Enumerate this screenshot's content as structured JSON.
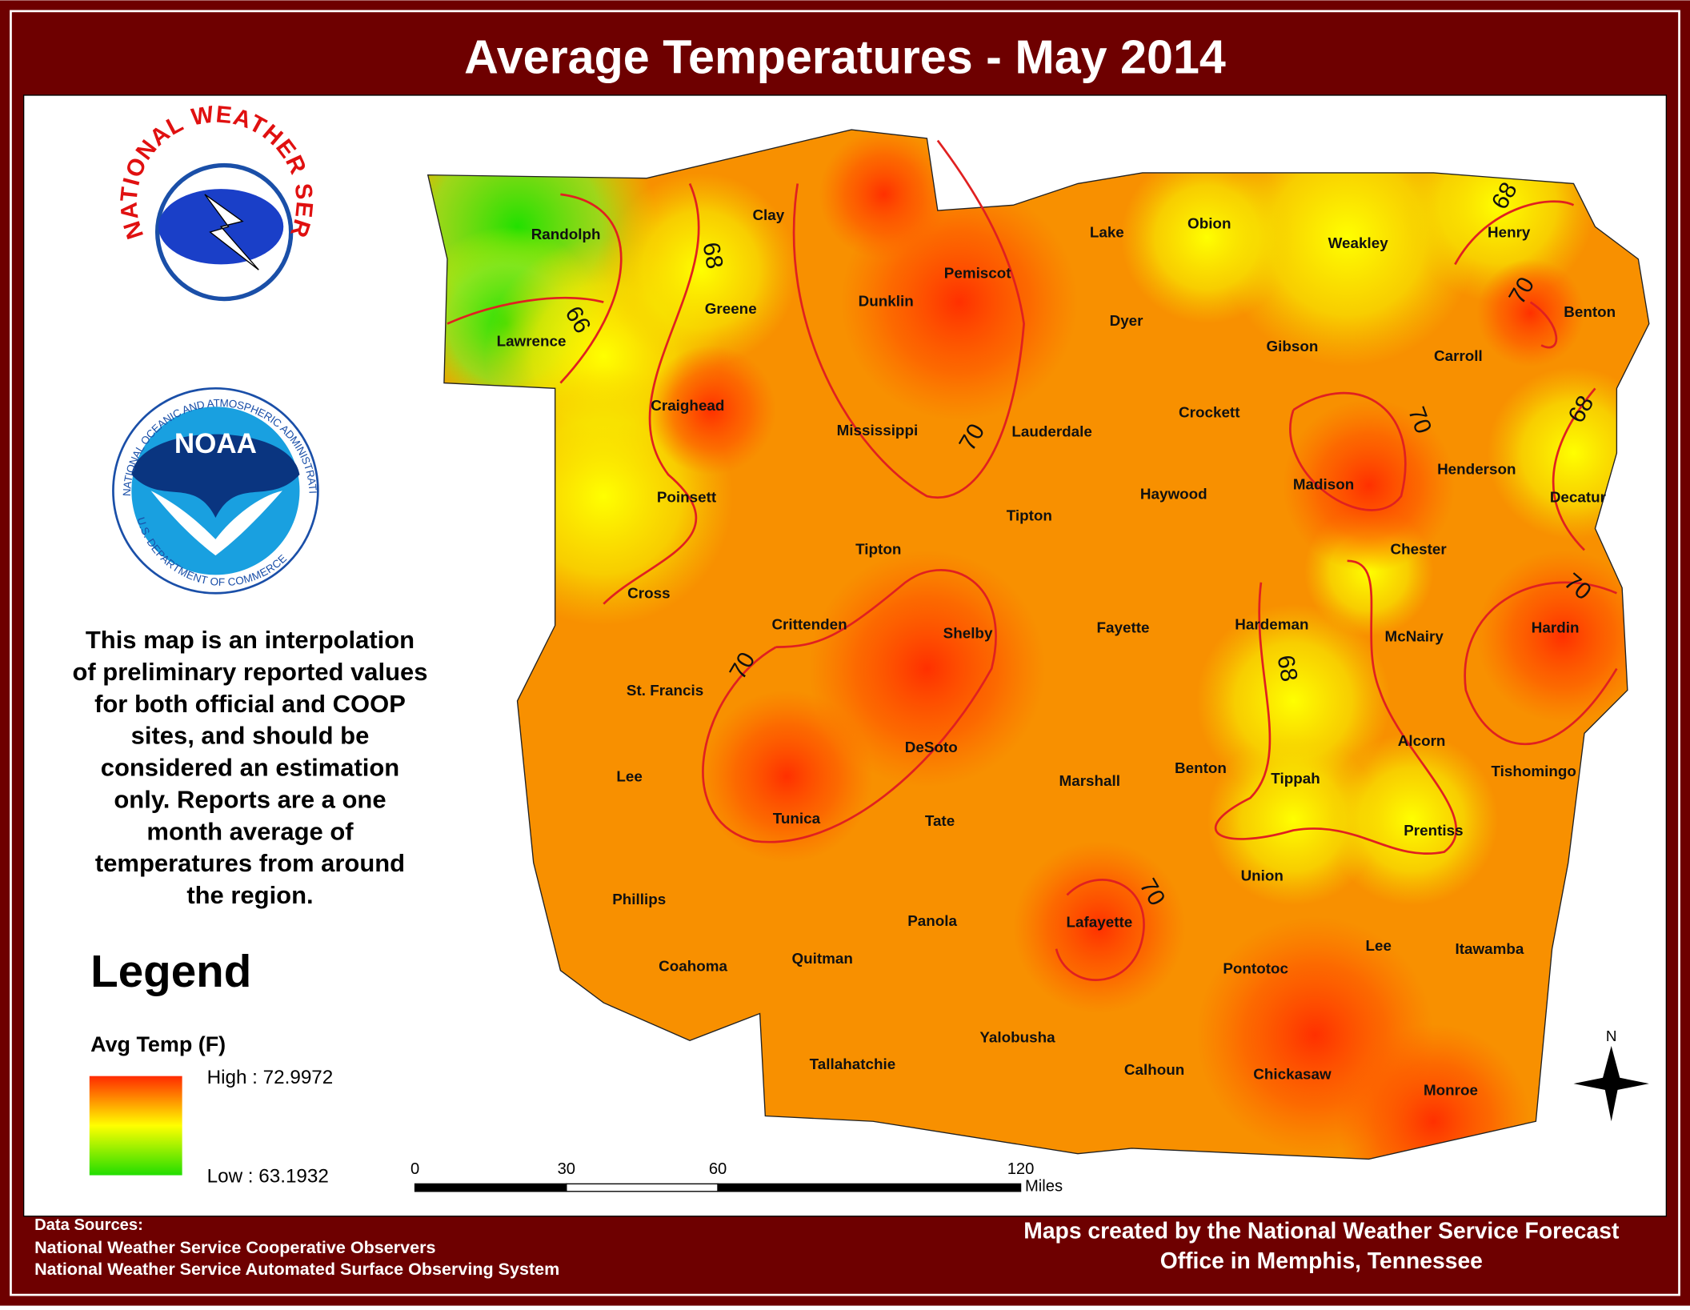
{
  "title": "Average Temperatures - May 2014",
  "logos": {
    "nws": "NATIONAL WEATHER SERVICE",
    "noaa": "NOAA",
    "noaa_ring_top": "NATIONAL OCEANIC AND ATMOSPHERIC ADMINISTRATION",
    "noaa_ring_bottom": "U.S. DEPARTMENT OF COMMERCE"
  },
  "description": [
    "This map is an interpolation",
    "of preliminary reported values",
    "for both official and COOP",
    "sites, and should be",
    "considered an estimation",
    "only. Reports are a one",
    "month average of",
    "temperatures from around",
    "the region."
  ],
  "legend": {
    "title": "Legend",
    "layer": "Avg Temp (F)",
    "high": "High : 72.9972",
    "low": "Low : 63.1932"
  },
  "counties": [
    "Randolph",
    "Clay",
    "Lawrence",
    "Greene",
    "Dunklin",
    "Pemiscot",
    "Lake",
    "Obion",
    "Weakley",
    "Henry",
    "Dyer",
    "Gibson",
    "Carroll",
    "Benton",
    "Craighead",
    "Mississippi",
    "Lauderdale",
    "Crockett",
    "Madison",
    "Henderson",
    "Decatur",
    "Poinsett",
    "Tipton",
    "Tipton",
    "Haywood",
    "Chester",
    "Cross",
    "Crittenden",
    "Shelby",
    "Fayette",
    "Hardeman",
    "McNairy",
    "Hardin",
    "St. Francis",
    "Lee",
    "DeSoto",
    "Marshall",
    "Benton",
    "Tippah",
    "Alcorn",
    "Tishomingo",
    "Tunica",
    "Tate",
    "Prentiss",
    "Union",
    "Phillips",
    "Panola",
    "Lafayette",
    "Lee",
    "Itawamba",
    "Pontotoc",
    "Coahoma",
    "Quitman",
    "Yalobusha",
    "Tallahatchie",
    "Calhoun",
    "Chickasaw",
    "Monroe"
  ],
  "contour_labels": [
    66,
    68,
    68,
    70,
    70,
    70,
    68,
    70,
    70,
    68,
    70
  ],
  "scale_bar": {
    "ticks": [
      0,
      30,
      60,
      120
    ],
    "unit": "Miles"
  },
  "north": "N",
  "footer": {
    "sources_title": "Data Sources:",
    "sources": [
      "National Weather Service Cooperative Observers",
      "National Weather Service Automated Surface Observing System"
    ],
    "credit": [
      "Maps created by the National Weather Service Forecast",
      "Office in Memphis, Tennessee"
    ]
  }
}
